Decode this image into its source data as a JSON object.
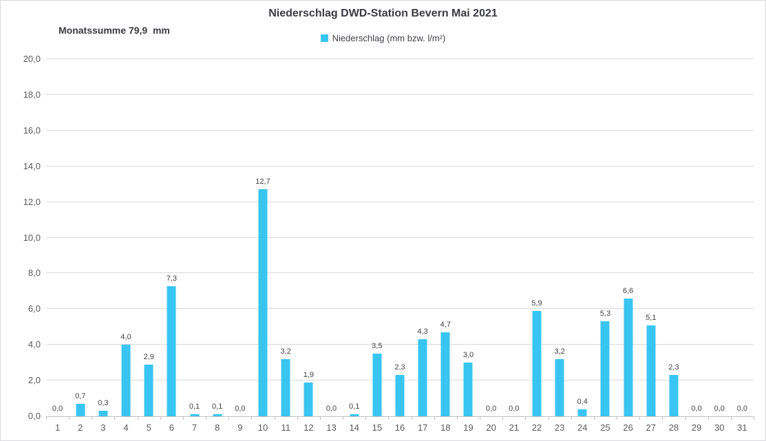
{
  "chart_data": {
    "type": "bar",
    "title": "Niederschlag DWD-Station Bevern Mai 2021",
    "annotation": "Monatssumme 79,9  mm",
    "legend": [
      {
        "label": "Niederschlag (mm bzw. l/m²)",
        "color": "#38c5f2"
      }
    ],
    "legend_position": "top-center",
    "categories": [
      "1",
      "2",
      "3",
      "4",
      "5",
      "6",
      "7",
      "8",
      "9",
      "10",
      "11",
      "12",
      "13",
      "14",
      "15",
      "16",
      "17",
      "18",
      "19",
      "20",
      "21",
      "22",
      "23",
      "24",
      "25",
      "26",
      "27",
      "28",
      "29",
      "30",
      "31"
    ],
    "values": [
      0.0,
      0.7,
      0.3,
      4.0,
      2.9,
      7.3,
      0.1,
      0.1,
      0.0,
      12.7,
      3.2,
      1.9,
      0.0,
      0.1,
      3.5,
      2.3,
      4.3,
      4.7,
      3.0,
      0.0,
      0.0,
      5.9,
      3.2,
      0.4,
      5.3,
      6.6,
      5.1,
      2.3,
      0.0,
      0.0,
      0.0
    ],
    "value_labels": [
      "0,0",
      "0,7",
      "0,3",
      "4,0",
      "2,9",
      "7,3",
      "0,1",
      "0,1",
      "0,0",
      "12,7",
      "3,2",
      "1,9",
      "0,0",
      "0,1",
      "3,5",
      "2,3",
      "4,3",
      "4,7",
      "3,0",
      "0,0",
      "0,0",
      "5,9",
      "3,2",
      "0,4",
      "5,3",
      "6,6",
      "5,1",
      "2,3",
      "0,0",
      "0,0",
      "0,0"
    ],
    "xlabel": "",
    "ylabel": "",
    "ylim": [
      0,
      20
    ],
    "ytick_step": 2,
    "ytick_labels": [
      "0,0",
      "2,0",
      "4,0",
      "6,0",
      "8,0",
      "10,0",
      "12,0",
      "14,0",
      "16,0",
      "18,0",
      "20,0"
    ],
    "grid": true,
    "bar_color": "#38c5f2"
  },
  "colors": {
    "bar": "#38c5f2",
    "gridline": "#d9d9d9",
    "axis_line": "#bfbfbf",
    "tick_label": "#595959",
    "data_label": "#404040",
    "title": "#3a3a42",
    "background": "#ffffff",
    "frame_border": "#d9d9de"
  }
}
